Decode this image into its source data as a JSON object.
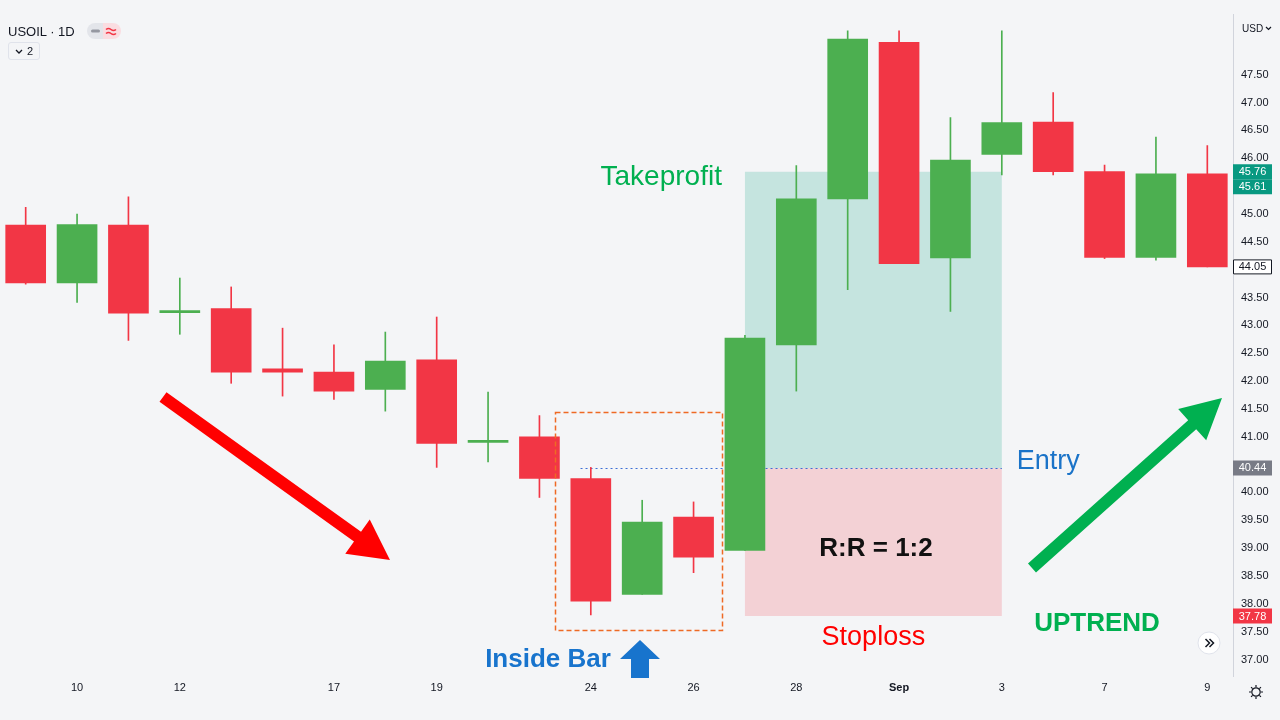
{
  "chart_data": {
    "type": "candlestick",
    "title": "USOIL · 1D",
    "ylabel": "USD",
    "categories": [
      null,
      "10",
      null,
      "12",
      null,
      null,
      "17",
      null,
      "19",
      null,
      null,
      "24",
      null,
      "26",
      null,
      "28",
      null,
      "Sep",
      null,
      "3",
      null,
      "7",
      null,
      "9"
    ],
    "ohlc": [
      [
        44.8,
        45.12,
        43.74,
        43.76
      ],
      [
        43.76,
        45.0,
        43.41,
        44.81
      ],
      [
        44.8,
        45.31,
        42.73,
        43.22
      ],
      [
        43.23,
        43.85,
        42.84,
        43.24
      ],
      [
        43.3,
        43.69,
        41.96,
        42.16
      ],
      [
        42.22,
        42.95,
        41.73,
        42.16
      ],
      [
        42.16,
        42.65,
        41.67,
        41.82
      ],
      [
        41.85,
        42.88,
        41.46,
        42.36
      ],
      [
        42.38,
        43.15,
        40.45,
        40.88
      ],
      [
        40.9,
        41.8,
        40.55,
        40.91
      ],
      [
        41.0,
        41.38,
        39.91,
        40.25
      ],
      [
        40.25,
        40.45,
        37.8,
        38.05
      ],
      [
        38.17,
        39.86,
        38.17,
        39.47
      ],
      [
        39.56,
        39.83,
        38.56,
        38.84
      ],
      [
        38.96,
        42.82,
        38.96,
        42.77
      ],
      [
        42.65,
        45.87,
        41.82,
        45.27
      ],
      [
        45.27,
        48.29,
        43.64,
        48.14
      ],
      [
        48.08,
        48.29,
        44.11,
        44.11
      ],
      [
        44.21,
        46.73,
        43.25,
        45.97
      ],
      [
        46.07,
        48.29,
        45.7,
        46.64
      ],
      [
        46.65,
        47.18,
        45.7,
        45.76
      ],
      [
        45.76,
        45.88,
        44.2,
        44.22
      ],
      [
        44.22,
        46.38,
        44.17,
        45.72
      ],
      [
        45.72,
        46.23,
        44.05,
        44.05
      ]
    ],
    "colors": [
      "#f23645",
      "#4caf50",
      "#f23645",
      "#4caf50",
      "#f23645",
      "#f23645",
      "#f23645",
      "#4caf50",
      "#f23645",
      "#4caf50",
      "#f23645",
      "#f23645",
      "#4caf50",
      "#f23645",
      "#4caf50",
      "#4caf50",
      "#4caf50",
      "#f23645",
      "#4caf50",
      "#4caf50",
      "#f23645",
      "#f23645",
      "#4caf50",
      "#f23645"
    ],
    "ylim": [
      36.69,
      48.58
    ],
    "yticks": [
      {
        "value": 37,
        "label": "37.00"
      },
      {
        "value": 37.5,
        "label": "37.50"
      },
      {
        "value": 38,
        "label": "38.00"
      },
      {
        "value": 38.5,
        "label": "38.50"
      },
      {
        "value": 39,
        "label": "39.00"
      },
      {
        "value": 39.5,
        "label": "39.50"
      },
      {
        "value": 40,
        "label": "40.00"
      },
      {
        "value": 41,
        "label": "41.00"
      },
      {
        "value": 41.5,
        "label": "41.50"
      },
      {
        "value": 42,
        "label": "42.00"
      },
      {
        "value": 42.5,
        "label": "42.50"
      },
      {
        "value": 43,
        "label": "43.00"
      },
      {
        "value": 43.5,
        "label": "43.50"
      },
      {
        "value": 44.5,
        "label": "44.50"
      },
      {
        "value": 45,
        "label": "45.00"
      },
      {
        "value": 46,
        "label": "46.00"
      },
      {
        "value": 46.5,
        "label": "46.50"
      },
      {
        "value": 47,
        "label": "47.00"
      },
      {
        "value": 47.5,
        "label": "47.50"
      }
    ],
    "bands": [
      {
        "axis": "y",
        "from": 40.44,
        "to": 45.76,
        "label": "Takeprofit",
        "color": "#c5e4df"
      },
      {
        "axis": "y",
        "from": 37.78,
        "to": 40.44,
        "label": "Stoploss",
        "color": "#f3d1d5"
      }
    ],
    "ref_lines": [
      {
        "axis": "y",
        "value": 40.44,
        "label": "Entry",
        "color": "#3d6fd6",
        "line_style": "dotted"
      }
    ],
    "annotations": [
      {
        "text": "45.76",
        "y": 45.76
      },
      "45.61",
      {
        "text": "44.05",
        "y": 44.05
      },
      {
        "text": "40.44",
        "y": 40.44
      },
      {
        "text": "37.78",
        "y": 37.78
      },
      "R:R = 1:2",
      "UPTREND",
      "Inside Bar",
      "2"
    ]
  }
}
